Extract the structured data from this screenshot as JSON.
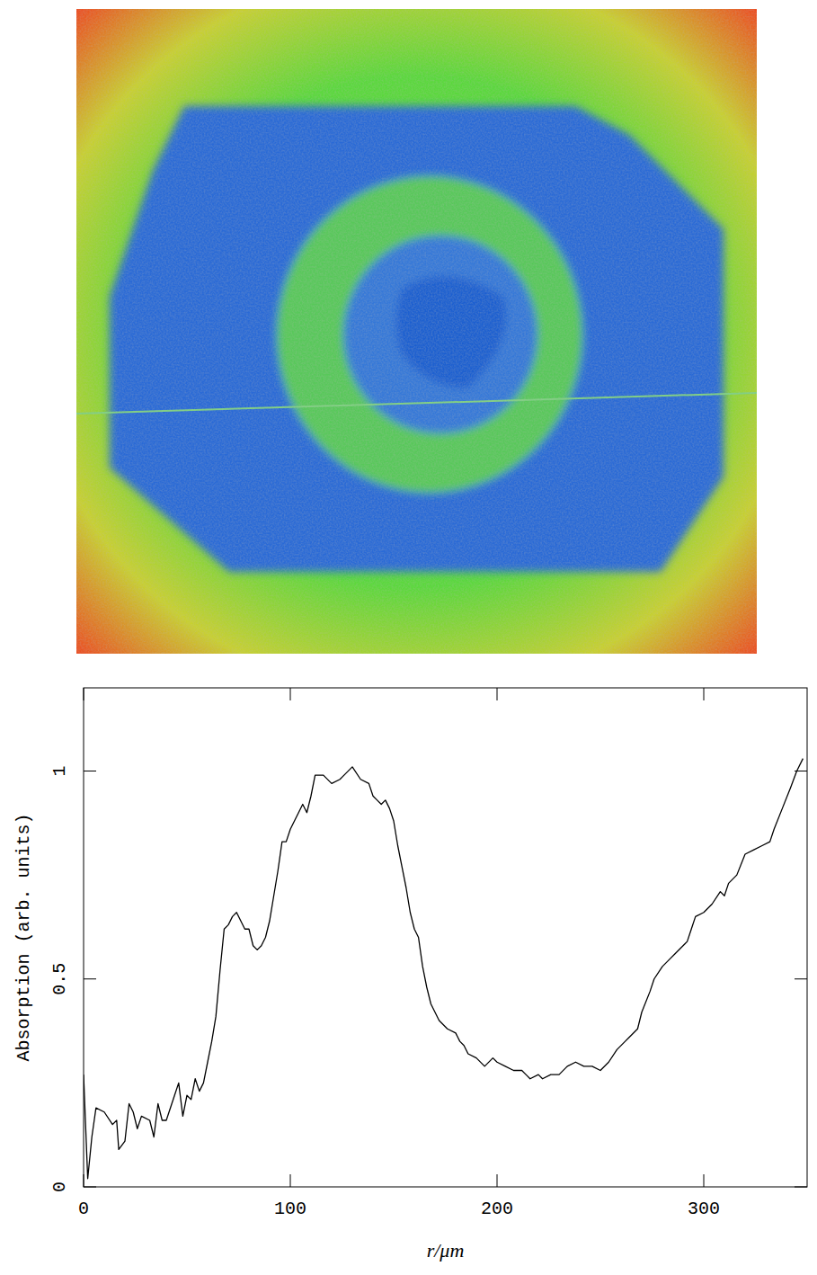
{
  "chart_data": {
    "type": "line",
    "color": "#000000",
    "xlabel": "r/μm",
    "ylabel": "Absorption (arb. units)",
    "xlim": [
      0,
      350
    ],
    "ylim": [
      0,
      1.2
    ],
    "xticks": [
      0,
      100,
      200,
      300
    ],
    "yticks": [
      0,
      0.5,
      1
    ],
    "x": [
      0,
      2,
      4,
      6,
      10,
      14,
      16,
      17,
      20,
      22,
      24,
      26,
      28,
      32,
      34,
      36,
      38,
      40,
      44,
      46,
      48,
      50,
      52,
      54,
      56,
      58,
      60,
      62,
      64,
      66,
      68,
      70,
      72,
      74,
      76,
      78,
      80,
      82,
      84,
      86,
      88,
      90,
      92,
      94,
      96,
      98,
      100,
      104,
      106,
      108,
      110,
      112,
      116,
      120,
      124,
      126,
      130,
      134,
      138,
      140,
      142,
      144,
      146,
      148,
      150,
      152,
      154,
      156,
      158,
      160,
      162,
      164,
      166,
      168,
      170,
      172,
      176,
      180,
      182,
      184,
      186,
      190,
      194,
      198,
      200,
      204,
      208,
      212,
      214,
      216,
      220,
      222,
      226,
      230,
      234,
      238,
      242,
      246,
      250,
      254,
      258,
      262,
      264,
      268,
      270,
      274,
      276,
      280,
      284,
      286,
      290,
      292,
      294,
      296,
      300,
      304,
      308,
      310,
      312,
      316,
      320,
      324,
      328,
      332,
      334,
      338,
      342,
      345,
      348
    ],
    "values": [
      0.27,
      0.02,
      0.12,
      0.19,
      0.18,
      0.15,
      0.16,
      0.09,
      0.11,
      0.2,
      0.18,
      0.14,
      0.17,
      0.16,
      0.12,
      0.2,
      0.16,
      0.16,
      0.22,
      0.25,
      0.17,
      0.22,
      0.21,
      0.26,
      0.23,
      0.25,
      0.3,
      0.35,
      0.41,
      0.52,
      0.62,
      0.63,
      0.65,
      0.66,
      0.64,
      0.62,
      0.62,
      0.58,
      0.57,
      0.58,
      0.6,
      0.64,
      0.7,
      0.76,
      0.83,
      0.83,
      0.86,
      0.9,
      0.92,
      0.9,
      0.94,
      0.99,
      0.99,
      0.97,
      0.98,
      0.99,
      1.01,
      0.98,
      0.97,
      0.94,
      0.93,
      0.92,
      0.93,
      0.91,
      0.88,
      0.82,
      0.77,
      0.72,
      0.66,
      0.62,
      0.6,
      0.53,
      0.48,
      0.44,
      0.42,
      0.4,
      0.38,
      0.37,
      0.35,
      0.34,
      0.32,
      0.31,
      0.29,
      0.31,
      0.3,
      0.29,
      0.28,
      0.28,
      0.27,
      0.26,
      0.27,
      0.26,
      0.27,
      0.27,
      0.29,
      0.3,
      0.29,
      0.29,
      0.28,
      0.3,
      0.33,
      0.35,
      0.36,
      0.38,
      0.42,
      0.47,
      0.5,
      0.53,
      0.55,
      0.56,
      0.58,
      0.59,
      0.62,
      0.65,
      0.66,
      0.68,
      0.71,
      0.7,
      0.73,
      0.75,
      0.8,
      0.81,
      0.82,
      0.83,
      0.86,
      0.91,
      0.96,
      1.0,
      1.03
    ]
  }
}
